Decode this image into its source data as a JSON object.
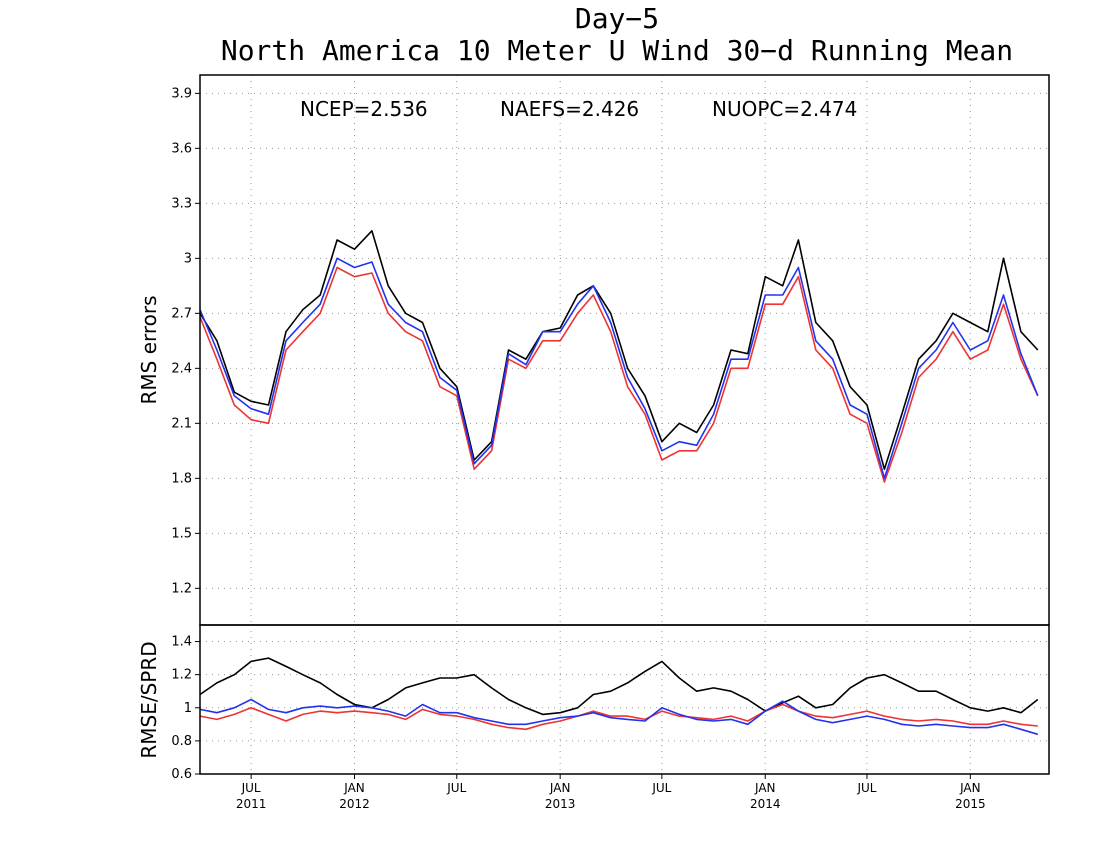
{
  "chart_data": [
    {
      "type": "line",
      "title": "Day−5",
      "subtitle": "North America 10 Meter U Wind 30−d Running Mean",
      "ylabel": "RMS errors",
      "ylim": [
        1.0,
        4.0
      ],
      "yticks": [
        "1.2",
        "1.5",
        "1.8",
        "2.1",
        "2.4",
        "2.7",
        "3",
        "3.3",
        "3.6",
        "3.9"
      ],
      "ytick_values": [
        1.2,
        1.5,
        1.8,
        2.1,
        2.4,
        2.7,
        3.0,
        3.3,
        3.6,
        3.9
      ],
      "grid": true,
      "stats": [
        {
          "text": "NCEP=2.536",
          "color": "#000000"
        },
        {
          "text": "NAEFS=2.426",
          "color": "#ee3333"
        },
        {
          "text": "NUOPC=2.474",
          "color": "#2233ee"
        }
      ],
      "x": [
        "2011-04-01",
        "2011-05-01",
        "2011-06-01",
        "2011-07-01",
        "2011-08-01",
        "2011-09-01",
        "2011-10-01",
        "2011-11-01",
        "2011-12-01",
        "2012-01-01",
        "2012-02-01",
        "2012-03-01",
        "2012-04-01",
        "2012-05-01",
        "2012-06-01",
        "2012-07-01",
        "2012-08-01",
        "2012-09-01",
        "2012-10-01",
        "2012-11-01",
        "2012-12-01",
        "2013-01-01",
        "2013-02-01",
        "2013-03-01",
        "2013-04-01",
        "2013-05-01",
        "2013-06-01",
        "2013-07-01",
        "2013-08-01",
        "2013-09-01",
        "2013-10-01",
        "2013-11-01",
        "2013-12-01",
        "2014-01-01",
        "2014-02-01",
        "2014-03-01",
        "2014-04-01",
        "2014-05-01",
        "2014-06-01",
        "2014-07-01",
        "2014-08-01",
        "2014-09-01",
        "2014-10-01",
        "2014-11-01",
        "2014-12-01",
        "2015-01-01",
        "2015-02-01",
        "2015-03-01",
        "2015-04-01",
        "2015-05-01"
      ],
      "series": [
        {
          "name": "NCEP",
          "color": "#000000",
          "values": [
            2.7,
            2.55,
            2.27,
            2.22,
            2.2,
            2.6,
            2.72,
            2.8,
            3.1,
            3.05,
            3.15,
            2.85,
            2.7,
            2.65,
            2.4,
            2.3,
            1.9,
            2.0,
            2.5,
            2.45,
            2.6,
            2.62,
            2.8,
            2.85,
            2.7,
            2.4,
            2.25,
            2.0,
            2.1,
            2.05,
            2.2,
            2.5,
            2.48,
            2.9,
            2.85,
            3.1,
            2.65,
            2.55,
            2.3,
            2.2,
            1.85,
            2.15,
            2.45,
            2.55,
            2.7,
            2.65,
            2.6,
            3.0,
            2.6,
            2.5
          ]
        },
        {
          "name": "NAEFS",
          "color": "#ee3333",
          "values": [
            2.68,
            2.45,
            2.2,
            2.12,
            2.1,
            2.5,
            2.6,
            2.7,
            2.95,
            2.9,
            2.92,
            2.7,
            2.6,
            2.55,
            2.3,
            2.25,
            1.85,
            1.95,
            2.45,
            2.4,
            2.55,
            2.55,
            2.7,
            2.8,
            2.6,
            2.3,
            2.15,
            1.9,
            1.95,
            1.95,
            2.1,
            2.4,
            2.4,
            2.75,
            2.75,
            2.9,
            2.5,
            2.4,
            2.15,
            2.1,
            1.78,
            2.05,
            2.35,
            2.45,
            2.6,
            2.45,
            2.5,
            2.75,
            2.45,
            2.25
          ]
        },
        {
          "name": "NUOPC",
          "color": "#2233ee",
          "values": [
            2.72,
            2.5,
            2.25,
            2.18,
            2.15,
            2.55,
            2.65,
            2.75,
            3.0,
            2.95,
            2.98,
            2.75,
            2.65,
            2.6,
            2.35,
            2.28,
            1.88,
            1.98,
            2.48,
            2.42,
            2.6,
            2.6,
            2.75,
            2.85,
            2.65,
            2.35,
            2.18,
            1.95,
            2.0,
            1.98,
            2.15,
            2.45,
            2.45,
            2.8,
            2.8,
            2.95,
            2.55,
            2.45,
            2.2,
            2.15,
            1.8,
            2.1,
            2.4,
            2.5,
            2.65,
            2.5,
            2.55,
            2.8,
            2.48,
            2.25
          ]
        }
      ]
    },
    {
      "type": "line",
      "ylabel": "RMSE/SPRD",
      "ylim": [
        0.6,
        1.5
      ],
      "yticks": [
        "0.6",
        "0.8",
        "1",
        "1.2",
        "1.4"
      ],
      "ytick_values": [
        0.6,
        0.8,
        1.0,
        1.2,
        1.4
      ],
      "grid": true,
      "x_ticks": [
        {
          "date": "2011-07-01",
          "label": "JUL",
          "year": "2011"
        },
        {
          "date": "2012-01-01",
          "label": "JAN",
          "year": "2012"
        },
        {
          "date": "2012-07-01",
          "label": "JUL",
          "year": ""
        },
        {
          "date": "2013-01-01",
          "label": "JAN",
          "year": "2013"
        },
        {
          "date": "2013-07-01",
          "label": "JUL",
          "year": ""
        },
        {
          "date": "2014-01-01",
          "label": "JAN",
          "year": "2014"
        },
        {
          "date": "2014-07-01",
          "label": "JUL",
          "year": ""
        },
        {
          "date": "2015-01-01",
          "label": "JAN",
          "year": "2015"
        }
      ],
      "xlim": [
        "2011-04-01",
        "2015-05-21"
      ],
      "x": [
        "2011-04-01",
        "2011-05-01",
        "2011-06-01",
        "2011-07-01",
        "2011-08-01",
        "2011-09-01",
        "2011-10-01",
        "2011-11-01",
        "2011-12-01",
        "2012-01-01",
        "2012-02-01",
        "2012-03-01",
        "2012-04-01",
        "2012-05-01",
        "2012-06-01",
        "2012-07-01",
        "2012-08-01",
        "2012-09-01",
        "2012-10-01",
        "2012-11-01",
        "2012-12-01",
        "2013-01-01",
        "2013-02-01",
        "2013-03-01",
        "2013-04-01",
        "2013-05-01",
        "2013-06-01",
        "2013-07-01",
        "2013-08-01",
        "2013-09-01",
        "2013-10-01",
        "2013-11-01",
        "2013-12-01",
        "2014-01-01",
        "2014-02-01",
        "2014-03-01",
        "2014-04-01",
        "2014-05-01",
        "2014-06-01",
        "2014-07-01",
        "2014-08-01",
        "2014-09-01",
        "2014-10-01",
        "2014-11-01",
        "2014-12-01",
        "2015-01-01",
        "2015-02-01",
        "2015-03-01",
        "2015-04-01",
        "2015-05-01"
      ],
      "series": [
        {
          "name": "NCEP",
          "color": "#000000",
          "values": [
            1.08,
            1.15,
            1.2,
            1.28,
            1.3,
            1.25,
            1.2,
            1.15,
            1.08,
            1.02,
            1.0,
            1.05,
            1.12,
            1.15,
            1.18,
            1.18,
            1.2,
            1.12,
            1.05,
            1.0,
            0.96,
            0.97,
            1.0,
            1.08,
            1.1,
            1.15,
            1.22,
            1.28,
            1.18,
            1.1,
            1.12,
            1.1,
            1.05,
            0.98,
            1.03,
            1.07,
            1.0,
            1.02,
            1.12,
            1.18,
            1.2,
            1.15,
            1.1,
            1.1,
            1.05,
            1.0,
            0.98,
            1.0,
            0.97,
            1.05
          ]
        },
        {
          "name": "NAEFS",
          "color": "#ee3333",
          "values": [
            0.95,
            0.93,
            0.96,
            1.0,
            0.96,
            0.92,
            0.96,
            0.98,
            0.97,
            0.98,
            0.97,
            0.96,
            0.93,
            0.99,
            0.96,
            0.95,
            0.93,
            0.9,
            0.88,
            0.87,
            0.9,
            0.92,
            0.95,
            0.98,
            0.95,
            0.95,
            0.93,
            0.98,
            0.95,
            0.94,
            0.93,
            0.95,
            0.92,
            0.98,
            1.02,
            0.98,
            0.95,
            0.94,
            0.96,
            0.98,
            0.95,
            0.93,
            0.92,
            0.93,
            0.92,
            0.9,
            0.9,
            0.92,
            0.9,
            0.89
          ]
        },
        {
          "name": "NUOPC",
          "color": "#2233ee",
          "values": [
            0.99,
            0.97,
            1.0,
            1.05,
            0.99,
            0.97,
            1.0,
            1.01,
            1.0,
            1.01,
            1.0,
            0.98,
            0.95,
            1.02,
            0.97,
            0.97,
            0.94,
            0.92,
            0.9,
            0.9,
            0.92,
            0.94,
            0.95,
            0.97,
            0.94,
            0.93,
            0.92,
            1.0,
            0.96,
            0.93,
            0.92,
            0.93,
            0.9,
            0.98,
            1.04,
            0.98,
            0.93,
            0.91,
            0.93,
            0.95,
            0.93,
            0.9,
            0.89,
            0.9,
            0.89,
            0.88,
            0.88,
            0.9,
            0.87,
            0.84
          ]
        }
      ]
    }
  ]
}
